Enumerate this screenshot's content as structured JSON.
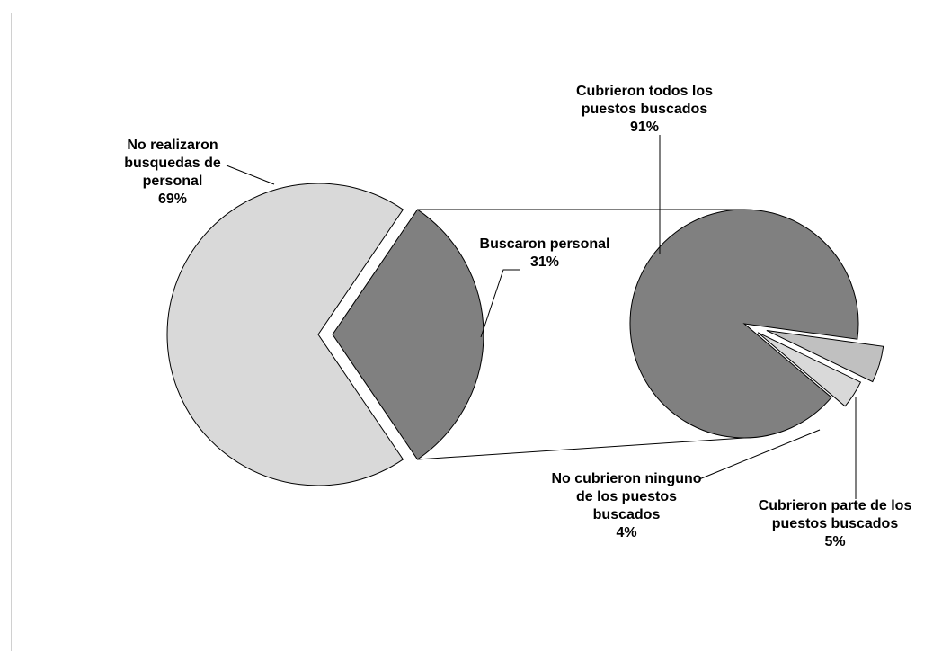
{
  "chart_data": [
    {
      "type": "pie",
      "categories": [
        "No realizaron busquedas de personal",
        "Buscaron personal"
      ],
      "values": [
        69,
        31
      ],
      "data_labels": [
        [
          "No realizaron",
          "busquedas de",
          "personal",
          "69%"
        ],
        [
          "Buscaron personal",
          "31%"
        ]
      ],
      "colors": [
        "#d9d9d9",
        "#808080"
      ]
    },
    {
      "type": "pie",
      "categories": [
        "Cubrieron todos los puestos buscados",
        "No cubrieron ninguno de los puestos buscados",
        "Cubrieron parte de los puestos buscados"
      ],
      "values": [
        91,
        4,
        5
      ],
      "data_labels": [
        [
          "Cubrieron todos los",
          "puestos buscados",
          "91%"
        ],
        [
          "No cubrieron ninguno",
          "de los puestos",
          "buscados",
          "4%"
        ],
        [
          "Cubrieron parte de los",
          "puestos buscados",
          "5%"
        ]
      ],
      "colors": [
        "#808080",
        "#d9d9d9",
        "#c0c0c0"
      ]
    }
  ]
}
